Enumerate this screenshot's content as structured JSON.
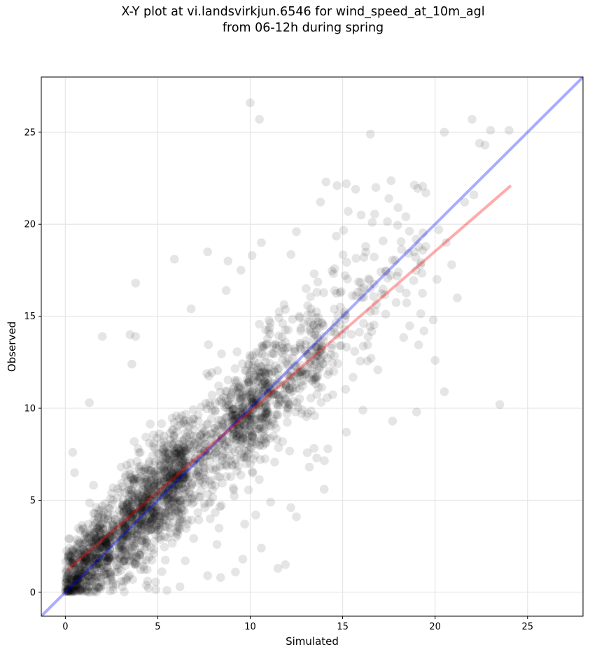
{
  "chart_data": {
    "type": "scatter",
    "title": "X-Y plot at vi.landsvirkjun.6546 for wind_speed_at_10m_agl",
    "subtitle": "from 06-12h during spring",
    "xlabel": "Simulated",
    "ylabel": "Observed",
    "xlim": [
      -1.3,
      28
    ],
    "ylim": [
      -1.3,
      28
    ],
    "xticks": [
      0,
      5,
      10,
      15,
      20,
      25
    ],
    "yticks": [
      0,
      5,
      10,
      15,
      20,
      25
    ],
    "grid": true,
    "point_color": "#000000",
    "point_alpha": 0.1,
    "reference_line": {
      "color": "#0000ff",
      "from": [
        -1.3,
        -1.3
      ],
      "to": [
        28,
        28
      ]
    },
    "regression_line": {
      "color": "#ff0000",
      "from": [
        0.1,
        1.2
      ],
      "to": [
        24.1,
        22.1
      ]
    },
    "outlier_points": [
      [
        10,
        26.6
      ],
      [
        10.5,
        25.7
      ],
      [
        16.5,
        24.9
      ],
      [
        22,
        25.7
      ],
      [
        20.5,
        25
      ],
      [
        23,
        25.1
      ],
      [
        24,
        25.1
      ],
      [
        22.4,
        24.4
      ],
      [
        22.7,
        24.3
      ],
      [
        14.1,
        22.3
      ],
      [
        14.7,
        22.1
      ],
      [
        15.2,
        22.2
      ],
      [
        15.7,
        21.9
      ],
      [
        16.8,
        22
      ],
      [
        17.5,
        21.4
      ],
      [
        18,
        20.9
      ],
      [
        19.5,
        21.7
      ],
      [
        21.6,
        21.2
      ],
      [
        22.1,
        21.6
      ],
      [
        13.8,
        21.2
      ],
      [
        15.3,
        20.7
      ],
      [
        16,
        20.5
      ],
      [
        16.6,
        20.1
      ],
      [
        12.5,
        19.6
      ],
      [
        7.7,
        18.5
      ],
      [
        8.8,
        18
      ],
      [
        9.5,
        17.5
      ],
      [
        10.1,
        18.3
      ],
      [
        10.6,
        19
      ],
      [
        5.9,
        18.1
      ],
      [
        3.8,
        16.8
      ],
      [
        6.8,
        15.4
      ],
      [
        8.7,
        16.4
      ],
      [
        2,
        13.9
      ],
      [
        3.5,
        14
      ],
      [
        3.8,
        13.9
      ],
      [
        3.6,
        12.4
      ],
      [
        1.3,
        10.3
      ],
      [
        0.4,
        7.6
      ],
      [
        0.5,
        6.5
      ],
      [
        20.2,
        19.7
      ],
      [
        20.6,
        19
      ],
      [
        20.9,
        17.8
      ],
      [
        20.1,
        17
      ],
      [
        19.9,
        14.8
      ],
      [
        19.4,
        14.2
      ],
      [
        21.2,
        16
      ],
      [
        20,
        12.6
      ],
      [
        20.5,
        10.9
      ],
      [
        19,
        9.8
      ],
      [
        23.5,
        10.2
      ],
      [
        17.7,
        9.3
      ],
      [
        16.1,
        9.9
      ],
      [
        15.2,
        8.7
      ],
      [
        14.2,
        7.8
      ],
      [
        14,
        5.6
      ],
      [
        12.5,
        4.1
      ],
      [
        11.9,
        1.5
      ],
      [
        11.5,
        1.3
      ],
      [
        10.6,
        2.4
      ],
      [
        9.6,
        1.8
      ],
      [
        9.2,
        1.1
      ],
      [
        8.4,
        0.8
      ],
      [
        7.7,
        0.9
      ],
      [
        6.2,
        0.3
      ],
      [
        5.5,
        0.1
      ],
      [
        8.2,
        2.6
      ],
      [
        9.7,
        3.7
      ],
      [
        10.3,
        4.2
      ],
      [
        11.1,
        4.9
      ],
      [
        12.2,
        4.6
      ],
      [
        13.2,
        6.8
      ],
      [
        13.6,
        7.3
      ]
    ],
    "cloud_clusters": [
      {
        "n": 900,
        "x_range": [
          0,
          6.5
        ],
        "spread": 1.35,
        "slope": 0.98,
        "intercept": 0.3
      },
      {
        "n": 850,
        "x_range": [
          3,
          11
        ],
        "spread": 1.6,
        "slope": 0.95,
        "intercept": 0.4
      },
      {
        "n": 420,
        "x_range": [
          9,
          14
        ],
        "spread": 1.7,
        "slope": 0.92,
        "intercept": 0.7
      },
      {
        "n": 150,
        "x_range": [
          13,
          19.5
        ],
        "spread": 2.1,
        "slope": 0.9,
        "intercept": 1.1
      },
      {
        "n": 160,
        "x_range": [
          0,
          2.5
        ],
        "spread": 0.7,
        "slope": 0.9,
        "intercept": 0.5
      }
    ]
  }
}
